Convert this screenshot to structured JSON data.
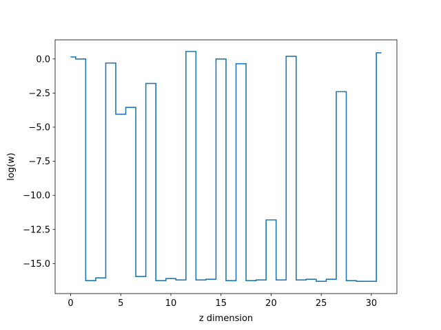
{
  "chart_data": {
    "type": "line",
    "drawstyle": "steps-mid",
    "title": "",
    "xlabel": "z dimension",
    "ylabel": "log(w)",
    "xlim": [
      -1.55,
      32.55
    ],
    "ylim": [
      -17.2,
      1.4
    ],
    "xticks": [
      0,
      5,
      10,
      15,
      20,
      25,
      30
    ],
    "xtick_labels": [
      "0",
      "5",
      "10",
      "15",
      "20",
      "25",
      "30"
    ],
    "yticks": [
      0.0,
      -2.5,
      -5.0,
      -7.5,
      -10.0,
      -12.5,
      -15.0
    ],
    "ytick_labels": [
      "0.0",
      "−2.5",
      "−5.0",
      "−7.5",
      "−10.0",
      "−12.5",
      "−15.0"
    ],
    "grid": false,
    "legend": "none",
    "series": [
      {
        "color": "#1f77b4",
        "x": [
          0,
          1,
          2,
          3,
          4,
          5,
          6,
          7,
          8,
          9,
          10,
          11,
          12,
          13,
          14,
          15,
          16,
          17,
          18,
          19,
          20,
          21,
          22,
          23,
          24,
          25,
          26,
          27,
          28,
          29,
          30,
          31
        ],
        "y": [
          0.15,
          0.0,
          -16.25,
          -16.05,
          -0.3,
          -4.05,
          -3.55,
          -15.95,
          -1.8,
          -16.25,
          -16.1,
          -16.2,
          0.55,
          -16.2,
          -16.15,
          0.0,
          -16.25,
          -0.35,
          -16.25,
          -16.2,
          -11.8,
          -16.2,
          0.2,
          -16.2,
          -16.15,
          -16.3,
          -16.15,
          -2.4,
          -16.25,
          -16.3,
          -16.3,
          0.45
        ]
      }
    ]
  }
}
